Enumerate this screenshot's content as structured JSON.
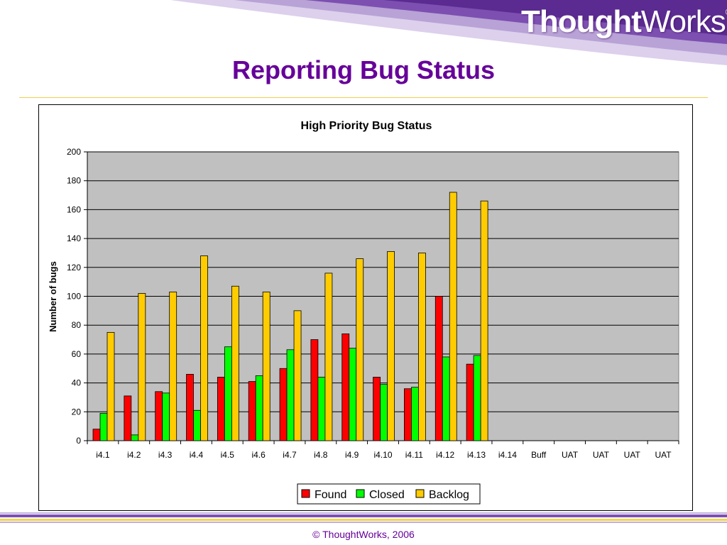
{
  "brand": {
    "logo_bold": "Thought",
    "logo_light": "Works",
    "logo_reg": "®",
    "purple": "#660099",
    "gold": "#f0c000"
  },
  "slide": {
    "title": "Reporting Bug Status",
    "footer": "© ThoughtWorks, 2006"
  },
  "chart_data": {
    "type": "bar",
    "title": "High Priority Bug Status",
    "xlabel": "",
    "ylabel": "Number of bugs",
    "ylim": [
      0,
      200
    ],
    "yticks": [
      0,
      20,
      40,
      60,
      80,
      100,
      120,
      140,
      160,
      180,
      200
    ],
    "grid": true,
    "legend": "bottom",
    "plot_background": "#c0c0c0",
    "categories": [
      "i4.1",
      "i4.2",
      "i4.3",
      "i4.4",
      "i4.5",
      "i4.6",
      "i4.7",
      "i4.8",
      "i4.9",
      "i4.10",
      "i4.11",
      "i4.12",
      "i4.13",
      "i4.14",
      "Buff",
      "UAT",
      "UAT",
      "UAT",
      "UAT"
    ],
    "series": [
      {
        "name": "Found",
        "color": "#ff0000",
        "values": [
          8,
          31,
          34,
          46,
          44,
          41,
          50,
          70,
          74,
          44,
          36,
          100,
          53,
          null,
          null,
          null,
          null,
          null,
          null
        ]
      },
      {
        "name": "Closed",
        "color": "#00ff00",
        "values": [
          19,
          4,
          33,
          21,
          65,
          45,
          63,
          44,
          64,
          39,
          37,
          58,
          59,
          null,
          null,
          null,
          null,
          null,
          null
        ]
      },
      {
        "name": "Backlog",
        "color": "#ffcc00",
        "values": [
          75,
          102,
          103,
          128,
          107,
          103,
          90,
          116,
          126,
          131,
          130,
          172,
          166,
          null,
          null,
          null,
          null,
          null,
          null
        ]
      }
    ]
  }
}
